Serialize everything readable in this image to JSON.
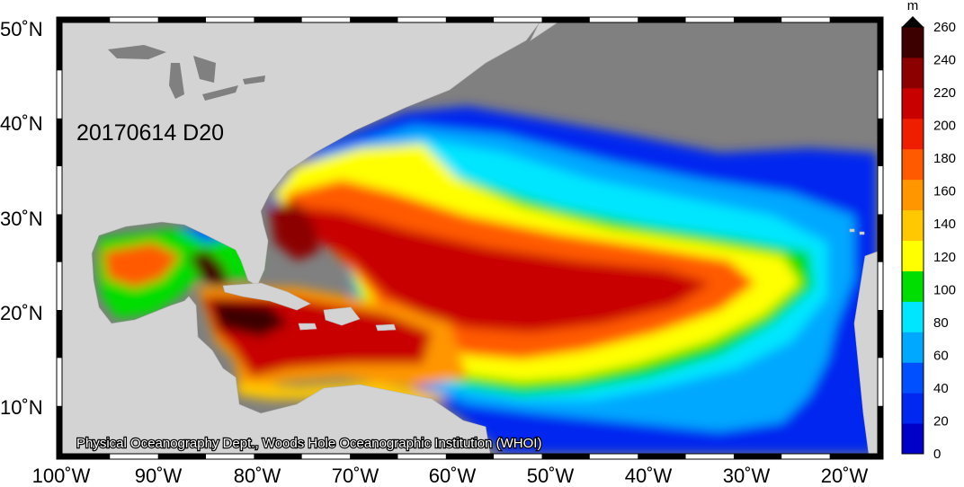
{
  "map": {
    "title_in_plot": "20170614 D20",
    "credit": "Physical Oceanography Dept., Woods Hole Oceanographic Institution (WHOI)",
    "lon_ticks": [
      "100˚W",
      "90˚W",
      "80˚W",
      "70˚W",
      "60˚W",
      "50˚W",
      "40˚W",
      "30˚W",
      "20˚W"
    ],
    "lat_ticks": [
      "50˚N",
      "40˚N",
      "30˚N",
      "20˚N",
      "10˚N"
    ],
    "lon_range_deg": [
      -100,
      -15
    ],
    "lat_range_deg": [
      5,
      50
    ],
    "colors": {
      "ocean_no_data": "#808080",
      "land": "#d3d3d3",
      "frame": "#000000"
    }
  },
  "colorbar": {
    "unit": "m",
    "ticks": [
      "260",
      "240",
      "220",
      "200",
      "180",
      "160",
      "140",
      "120",
      "100",
      "80",
      "60",
      "40",
      "20",
      "0"
    ],
    "colors": [
      "#0000c8",
      "#0028f0",
      "#0050ff",
      "#00a8ff",
      "#00e6ff",
      "#00dd00",
      "#ffff00",
      "#ffc800",
      "#ff9600",
      "#ff5a00",
      "#f01e00",
      "#c80000",
      "#8c0000",
      "#3c0000"
    ]
  }
}
